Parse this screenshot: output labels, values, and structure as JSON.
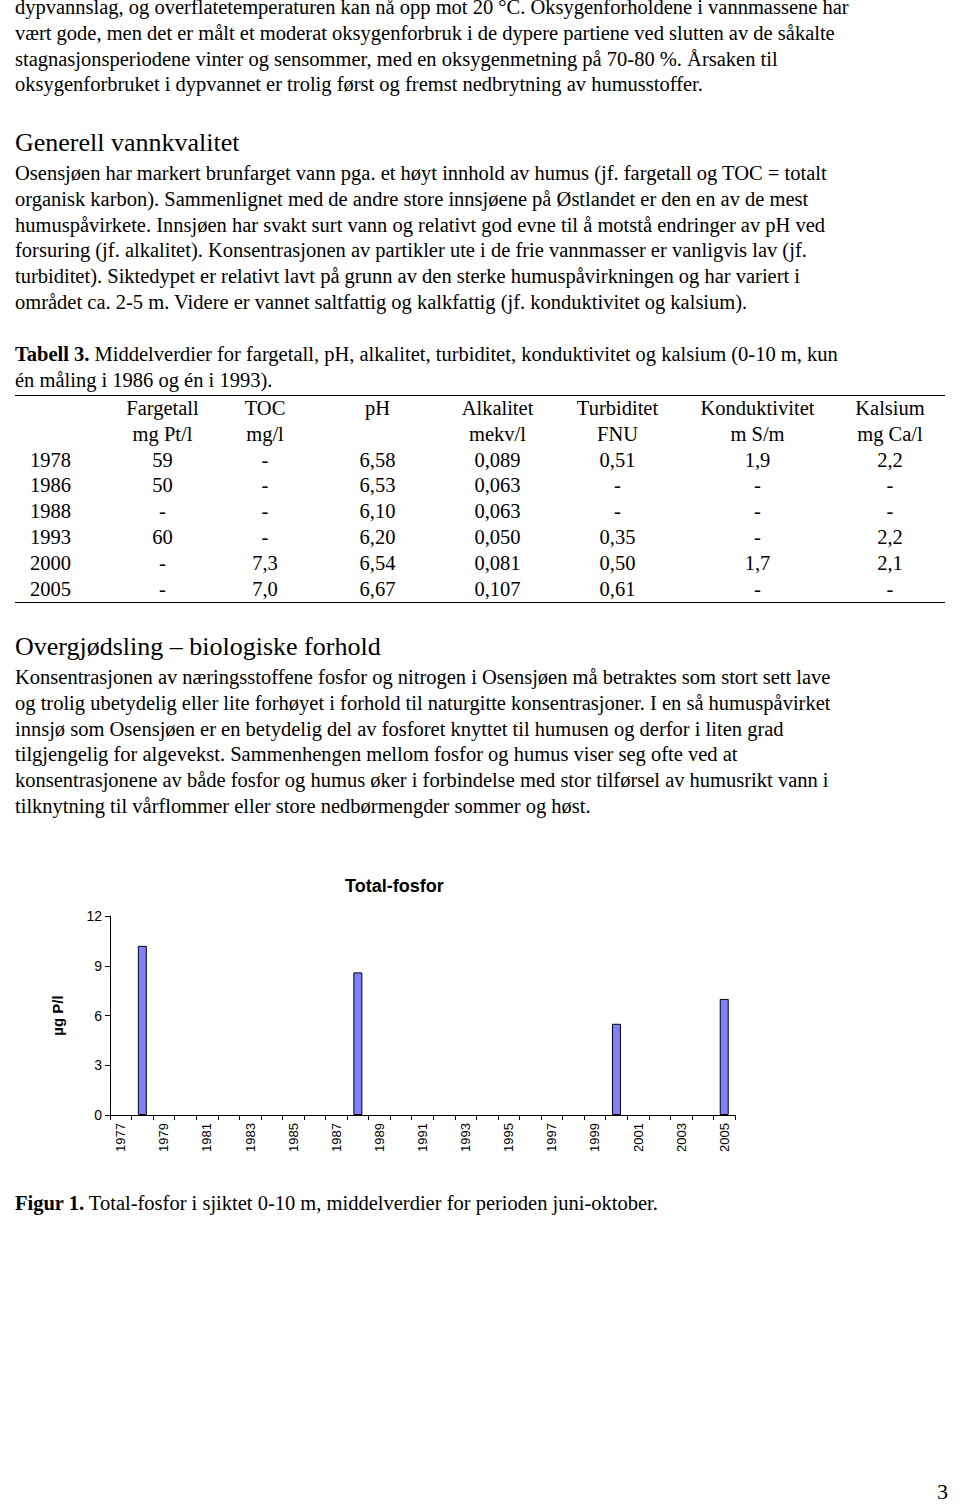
{
  "paragraph_1": [
    "dypvannslag, og overflatetemperaturen kan nå opp mot 20 °C. Oksygenforholdene i vannmassene har",
    "vært gode, men det er målt et moderat oksygenforbruk i de dypere partiene ved slutten av de såkalte",
    "stagnasjonsperiodene vinter og sensommer, med en oksygenmetning på 70-80 %. Årsaken til",
    "oksygenforbruket i dypvannet er trolig først og fremst nedbrytning av humusstoffer."
  ],
  "heading_1": "Generell vannkvalitet",
  "paragraph_2": [
    "Osensjøen har markert brunfarget vann pga. et høyt innhold av humus (jf. fargetall og TOC = totalt",
    "organisk karbon). Sammenlignet med de andre store innsjøene på Østlandet er den en av de mest",
    "humuspåvirkete. Innsjøen har svakt surt vann og relativt god evne til å motstå endringer av pH ved",
    "forsuring (jf. alkalitet). Konsentrasjonen av partikler ute i de frie vannmasser er vanligvis lav (jf.",
    "turbiditet). Siktedypet er relativt lavt på grunn av den sterke humuspåvirkningen og har variert i",
    "området ca. 2-5 m. Videre er vannet saltfattig og kalkfattig (jf. konduktivitet og kalsium)."
  ],
  "table_caption": {
    "label": "Tabell 3.",
    "lines": [
      "Middelverdier for fargetall, pH, alkalitet, turbiditet, konduktivitet og kalsium (0-10 m, kun",
      "én måling i 1986 og én i 1993)."
    ]
  },
  "table": {
    "header": [
      [
        "",
        "Fargetall",
        "TOC",
        "pH",
        "Alkalitet",
        "Turbiditet",
        "Konduktivitet",
        "Kalsium"
      ],
      [
        "",
        "mg Pt/l",
        "mg/l",
        "",
        "mekv/l",
        "FNU",
        "m S/m",
        "mg Ca/l"
      ]
    ],
    "rows": [
      [
        "1978",
        "59",
        "-",
        "6,58",
        "0,089",
        "0,51",
        "1,9",
        "2,2"
      ],
      [
        "1986",
        "50",
        "-",
        "6,53",
        "0,063",
        "-",
        "-",
        "-"
      ],
      [
        "1988",
        "-",
        "-",
        "6,10",
        "0,063",
        "-",
        "-",
        "-"
      ],
      [
        "1993",
        "60",
        "-",
        "6,20",
        "0,050",
        "0,35",
        "-",
        "2,2"
      ],
      [
        "2000",
        "-",
        "7,3",
        "6,54",
        "0,081",
        "0,50",
        "1,7",
        "2,1"
      ],
      [
        "2005",
        "-",
        "7,0",
        "6,67",
        "0,107",
        "0,61",
        "-",
        "-"
      ]
    ]
  },
  "heading_2": "Overgjødsling – biologiske forhold",
  "paragraph_3": [
    "Konsentrasjonen av næringsstoffene fosfor og nitrogen i Osensjøen må betraktes som stort sett lave",
    "og trolig ubetydelig eller lite forhøyet i forhold til naturgitte konsentrasjoner. I en så humuspåvirket",
    "innsjø som Osensjøen er en betydelig del av fosforet knyttet til humusen og derfor i liten grad",
    "tilgjengelig for algevekst. Sammenhengen mellom fosfor og humus viser seg ofte ved at",
    "konsentrasjonene av både fosfor og humus øker i forbindelse med stor tilførsel av humusrikt vann i",
    "tilknytning til vårflommer eller store nedbørmengder sommer og høst."
  ],
  "chart_data": {
    "type": "bar",
    "title": "Total-fosfor",
    "y_label": "µg P/l",
    "categories": [
      "1977",
      null,
      "1979",
      null,
      "1981",
      null,
      "1983",
      null,
      "1985",
      null,
      "1987",
      null,
      "1989",
      null,
      "1991",
      null,
      "1993",
      null,
      "1995",
      null,
      "1997",
      null,
      "1999",
      null,
      "2001",
      null,
      "2003",
      null,
      "2005"
    ],
    "values": [
      null,
      10.2,
      null,
      null,
      null,
      null,
      null,
      null,
      null,
      null,
      null,
      8.6,
      null,
      null,
      null,
      null,
      null,
      null,
      null,
      null,
      null,
      null,
      null,
      5.5,
      null,
      null,
      null,
      null,
      7.0
    ],
    "color": "#8080ff",
    "ylim": [
      0,
      12
    ],
    "yticks": [
      0,
      3,
      6,
      9,
      12
    ],
    "grid": false
  },
  "figure_caption": {
    "label": "Figur 1.",
    "text": "Total-fosfor i sjiktet 0-10 m, middelverdier for perioden juni-oktober."
  },
  "page_number": "3"
}
